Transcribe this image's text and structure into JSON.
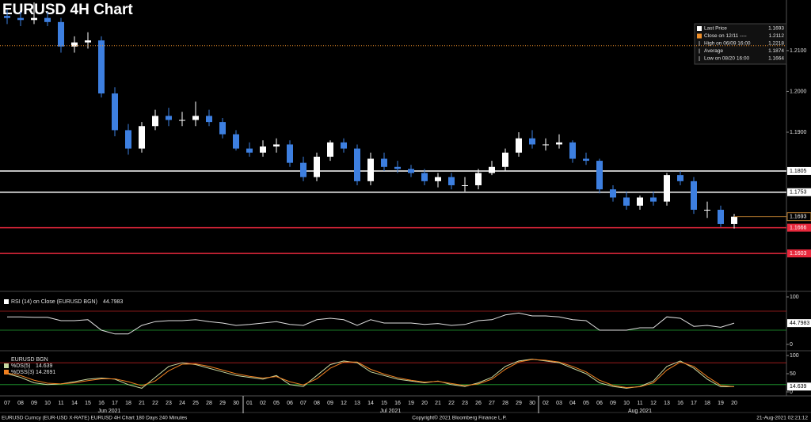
{
  "chart_data": [
    {
      "type": "candlestick",
      "title": "EURUSD 4H Chart",
      "categories": [
        "07",
        "08",
        "09",
        "10",
        "11",
        "14",
        "15",
        "16",
        "17",
        "18",
        "21",
        "22",
        "23",
        "24",
        "25",
        "28",
        "29",
        "30",
        "01",
        "02",
        "05",
        "06",
        "07",
        "08",
        "09",
        "12",
        "13",
        "14",
        "15",
        "16",
        "19",
        "20",
        "21",
        "22",
        "23",
        "26",
        "27",
        "28",
        "29",
        "30",
        "02",
        "03",
        "04",
        "05",
        "06",
        "09",
        "10",
        "11",
        "12",
        "13",
        "16",
        "17",
        "18",
        "19",
        "20"
      ],
      "months": [
        "Jun 2021",
        "Jul 2021",
        "Aug 2021"
      ],
      "open": [
        1.2185,
        1.218,
        1.2175,
        1.218,
        1.217,
        1.211,
        1.212,
        1.2125,
        1.1995,
        1.1905,
        1.186,
        1.1915,
        1.194,
        1.193,
        1.193,
        1.194,
        1.1925,
        1.1895,
        1.186,
        1.185,
        1.1865,
        1.187,
        1.1825,
        1.179,
        1.184,
        1.1875,
        1.186,
        1.178,
        1.1835,
        1.1815,
        1.181,
        1.18,
        1.178,
        1.179,
        1.177,
        1.177,
        1.18,
        1.1815,
        1.185,
        1.1885,
        1.187,
        1.187,
        1.1875,
        1.1835,
        1.183,
        1.176,
        1.174,
        1.172,
        1.174,
        1.173,
        1.1795,
        1.178,
        1.171,
        1.171,
        1.1675
      ],
      "high": [
        1.22,
        1.2195,
        1.2218,
        1.2195,
        1.218,
        1.2135,
        1.2145,
        1.2135,
        1.201,
        1.192,
        1.1925,
        1.1955,
        1.196,
        1.195,
        1.1975,
        1.1955,
        1.1935,
        1.1905,
        1.1875,
        1.188,
        1.1885,
        1.188,
        1.184,
        1.185,
        1.188,
        1.1885,
        1.187,
        1.185,
        1.185,
        1.183,
        1.182,
        1.181,
        1.18,
        1.18,
        1.179,
        1.181,
        1.183,
        1.186,
        1.19,
        1.1905,
        1.1885,
        1.1895,
        1.188,
        1.185,
        1.1835,
        1.177,
        1.1755,
        1.1745,
        1.1755,
        1.18,
        1.1805,
        1.179,
        1.173,
        1.172,
        1.17
      ],
      "low": [
        1.2165,
        1.216,
        1.2165,
        1.216,
        1.2095,
        1.2095,
        1.2105,
        1.1985,
        1.189,
        1.1845,
        1.185,
        1.1905,
        1.1915,
        1.1915,
        1.1915,
        1.1915,
        1.1885,
        1.1855,
        1.184,
        1.184,
        1.185,
        1.1815,
        1.178,
        1.178,
        1.183,
        1.185,
        1.177,
        1.177,
        1.1805,
        1.18,
        1.179,
        1.177,
        1.1765,
        1.176,
        1.1755,
        1.176,
        1.1795,
        1.1805,
        1.184,
        1.186,
        1.1855,
        1.186,
        1.1825,
        1.182,
        1.175,
        1.173,
        1.171,
        1.171,
        1.172,
        1.172,
        1.177,
        1.17,
        1.169,
        1.1668,
        1.1664
      ],
      "close": [
        1.218,
        1.2175,
        1.218,
        1.217,
        1.211,
        1.212,
        1.2125,
        1.1995,
        1.1905,
        1.186,
        1.1915,
        1.194,
        1.193,
        1.193,
        1.194,
        1.1925,
        1.1895,
        1.186,
        1.185,
        1.1865,
        1.187,
        1.1825,
        1.179,
        1.184,
        1.1875,
        1.186,
        1.178,
        1.1835,
        1.1815,
        1.181,
        1.18,
        1.178,
        1.179,
        1.177,
        1.177,
        1.18,
        1.1815,
        1.185,
        1.1885,
        1.187,
        1.187,
        1.1875,
        1.1835,
        1.183,
        1.176,
        1.174,
        1.172,
        1.174,
        1.173,
        1.1795,
        1.178,
        1.171,
        1.171,
        1.1675,
        1.1693
      ],
      "up_color": "#ffffff",
      "down_color": "#3d7fe0",
      "ylim": [
        1.151,
        1.2224
      ],
      "yticks": [
        {
          "value": 1.21,
          "label": "1.2100"
        },
        {
          "value": 1.2,
          "label": "1.2000"
        },
        {
          "value": 1.19,
          "label": "1.1900"
        }
      ],
      "legend": [
        {
          "label": "Last Price",
          "value": 1.1693,
          "color": "#ffffff"
        },
        {
          "label": "Close on 12/11 ----",
          "value": 1.2112,
          "color": "#f0902a"
        },
        {
          "label": "High on 06/09 16:00",
          "value": 1.2218
        },
        {
          "label": "Average",
          "value": 1.1874
        },
        {
          "label": "Low on 08/20 16:00",
          "value": 1.1664
        }
      ],
      "levels": [
        {
          "value": 1.1805,
          "color": "#ffffff"
        },
        {
          "value": 1.1753,
          "color": "#ffffff"
        },
        {
          "value": 1.1666,
          "color": "#e8283c"
        },
        {
          "value": 1.1603,
          "color": "#e8283c"
        }
      ]
    },
    {
      "type": "line",
      "ylim": [
        0,
        100
      ],
      "yticks": [
        0,
        100
      ],
      "levels": [
        {
          "value": 70,
          "color": "#b02020"
        },
        {
          "value": 30,
          "color": "#20a030"
        }
      ],
      "series": [
        {
          "name": "RSI (14)  on Close (EURUSD BGN)",
          "color": "#e0e0e0",
          "values": [
            58,
            58,
            57,
            57,
            50,
            50,
            52,
            30,
            22,
            22,
            40,
            48,
            50,
            50,
            52,
            48,
            45,
            40,
            42,
            45,
            48,
            42,
            40,
            52,
            55,
            52,
            40,
            52,
            45,
            45,
            45,
            42,
            44,
            40,
            42,
            50,
            52,
            62,
            66,
            60,
            60,
            58,
            52,
            50,
            30,
            30,
            30,
            35,
            35,
            58,
            55,
            38,
            40,
            36,
            44.7983
          ]
        }
      ]
    },
    {
      "type": "line",
      "title": "EURUSD BGN",
      "ylim": [
        0,
        100
      ],
      "yticks": [
        0,
        50,
        100
      ],
      "levels": [
        {
          "value": 80,
          "color": "#b02020"
        },
        {
          "value": 20,
          "color": "#20a030"
        }
      ],
      "series": [
        {
          "name": "%DS(5)",
          "color": "#c8d8a0",
          "values": [
            50,
            40,
            25,
            20,
            22,
            28,
            35,
            38,
            35,
            20,
            10,
            40,
            70,
            80,
            75,
            65,
            55,
            45,
            40,
            35,
            45,
            20,
            15,
            45,
            75,
            85,
            80,
            55,
            45,
            35,
            30,
            25,
            30,
            20,
            15,
            25,
            40,
            70,
            85,
            90,
            85,
            80,
            65,
            50,
            25,
            15,
            10,
            15,
            30,
            70,
            85,
            65,
            35,
            14,
            14.639
          ]
        },
        {
          "name": "%DSS(3)",
          "color": "#f08020",
          "values": [
            52,
            45,
            32,
            24,
            22,
            25,
            31,
            36,
            36,
            28,
            17,
            30,
            58,
            76,
            77,
            70,
            60,
            50,
            43,
            38,
            42,
            28,
            19,
            36,
            65,
            82,
            82,
            62,
            49,
            39,
            32,
            27,
            29,
            23,
            17,
            22,
            35,
            62,
            82,
            89,
            87,
            82,
            70,
            55,
            32,
            18,
            12,
            14,
            25,
            60,
            82,
            70,
            42,
            18,
            14.2691
          ]
        }
      ]
    }
  ],
  "footer": {
    "left": "EURUSD Curncy (EUR-USD X-RATE) EURUSD 4H Chart 180 Days 240 Minutes",
    "center": "Copyright© 2021 Bloomberg Finance L.P.",
    "right": "21-Aug-2021 02:21:12"
  }
}
